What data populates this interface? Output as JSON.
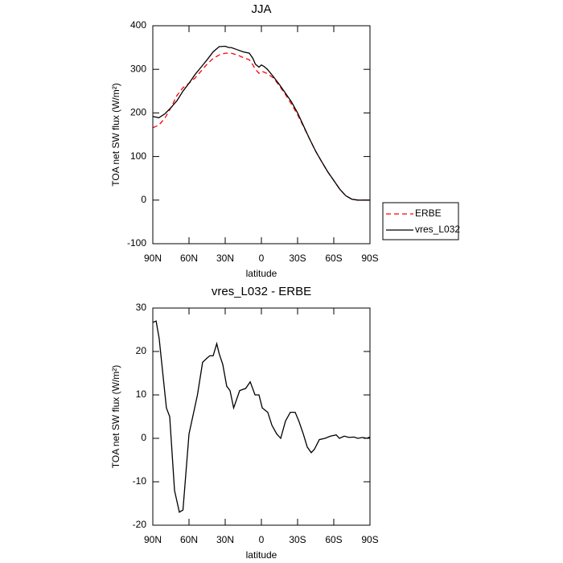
{
  "chart_data": [
    {
      "type": "line",
      "title": "JJA",
      "xlabel": "latitude",
      "ylabel": "TOA net SW flux (W/m²)",
      "x": [
        90,
        85,
        80,
        75,
        70,
        65,
        60,
        55,
        50,
        45,
        40,
        35,
        30,
        27,
        25,
        20,
        15,
        10,
        7,
        5,
        2,
        0,
        -2,
        -5,
        -10,
        -15,
        -20,
        -25,
        -30,
        -35,
        -40,
        -45,
        -50,
        -55,
        -60,
        -65,
        -70,
        -75,
        -80,
        -85,
        -90
      ],
      "series": [
        {
          "name": "ERBE",
          "color": "#ff0000",
          "dash": true,
          "values": [
            166,
            172,
            188,
            212,
            240,
            258,
            268,
            280,
            296,
            312,
            325,
            333,
            337,
            337,
            337,
            333,
            327,
            322,
            310,
            300,
            291,
            295,
            294,
            290,
            280,
            262,
            242,
            220,
            196,
            168,
            140,
            112,
            88,
            65,
            45,
            25,
            10,
            2,
            0,
            0,
            0
          ]
        },
        {
          "name": "vres_L032",
          "color": "#000000",
          "dash": false,
          "values": [
            192,
            189,
            198,
            212,
            228,
            250,
            268,
            288,
            305,
            322,
            340,
            352,
            353,
            350,
            350,
            345,
            340,
            337,
            325,
            312,
            305,
            310,
            307,
            300,
            283,
            265,
            245,
            225,
            200,
            170,
            140,
            112,
            88,
            65,
            45,
            25,
            10,
            2,
            0,
            0,
            0
          ]
        }
      ],
      "xlim": [
        90,
        -90
      ],
      "xticks": [
        {
          "value": 90,
          "label": "90N"
        },
        {
          "value": 60,
          "label": "60N"
        },
        {
          "value": 30,
          "label": "30N"
        },
        0,
        {
          "value": -30,
          "label": "30S"
        },
        {
          "value": -60,
          "label": "60S"
        },
        {
          "value": -90,
          "label": "90S"
        }
      ],
      "ylim": [
        -100,
        400
      ],
      "yticks": [
        -100,
        0,
        100,
        200,
        300,
        400
      ],
      "legend": "right"
    },
    {
      "type": "line",
      "title": "vres_L032 - ERBE",
      "xlabel": "latitude",
      "ylabel": "TOA net SW flux (W/m²)",
      "x": [
        90,
        87.3,
        84.7,
        78.7,
        76,
        72,
        68,
        65,
        60,
        53,
        48.7,
        45,
        42.7,
        40,
        37,
        35,
        32,
        28.7,
        26,
        23,
        18,
        13,
        9.3,
        5.3,
        2,
        -0.7,
        -5.3,
        -8.7,
        -12.7,
        -16,
        -20,
        -24,
        -28,
        -31,
        -34.7,
        -38,
        -41.3,
        -44,
        -48,
        -52.7,
        -57.3,
        -62,
        -64.7,
        -68.7,
        -72.7,
        -76.7,
        -80,
        -84,
        -87.3,
        -90
      ],
      "series": [
        {
          "color": "#000000",
          "dash": false,
          "values": [
            26.7,
            27,
            23,
            7,
            5,
            -12,
            -17,
            -16.5,
            1,
            10,
            17.5,
            18.5,
            19,
            19,
            21.8,
            19.5,
            17,
            12,
            11,
            7,
            11,
            11.5,
            13,
            10,
            10,
            7,
            6,
            3,
            1,
            0,
            4,
            6,
            6,
            4,
            1,
            -2,
            -3.3,
            -2.5,
            -0.3,
            0,
            0.5,
            0.8,
            0,
            0.5,
            0.2,
            0.3,
            0,
            0.2,
            0,
            0.3
          ]
        }
      ],
      "xlim": [
        90,
        -90
      ],
      "xticks": [
        {
          "value": 90,
          "label": "90N"
        },
        {
          "value": 60,
          "label": "60N"
        },
        {
          "value": 30,
          "label": "30N"
        },
        0,
        {
          "value": -30,
          "label": "30S"
        },
        {
          "value": -60,
          "label": "60S"
        },
        {
          "value": -90,
          "label": "90S"
        }
      ],
      "ylim": [
        -20,
        30
      ],
      "yticks": [
        -20,
        -10,
        0,
        10,
        20,
        30
      ]
    }
  ]
}
